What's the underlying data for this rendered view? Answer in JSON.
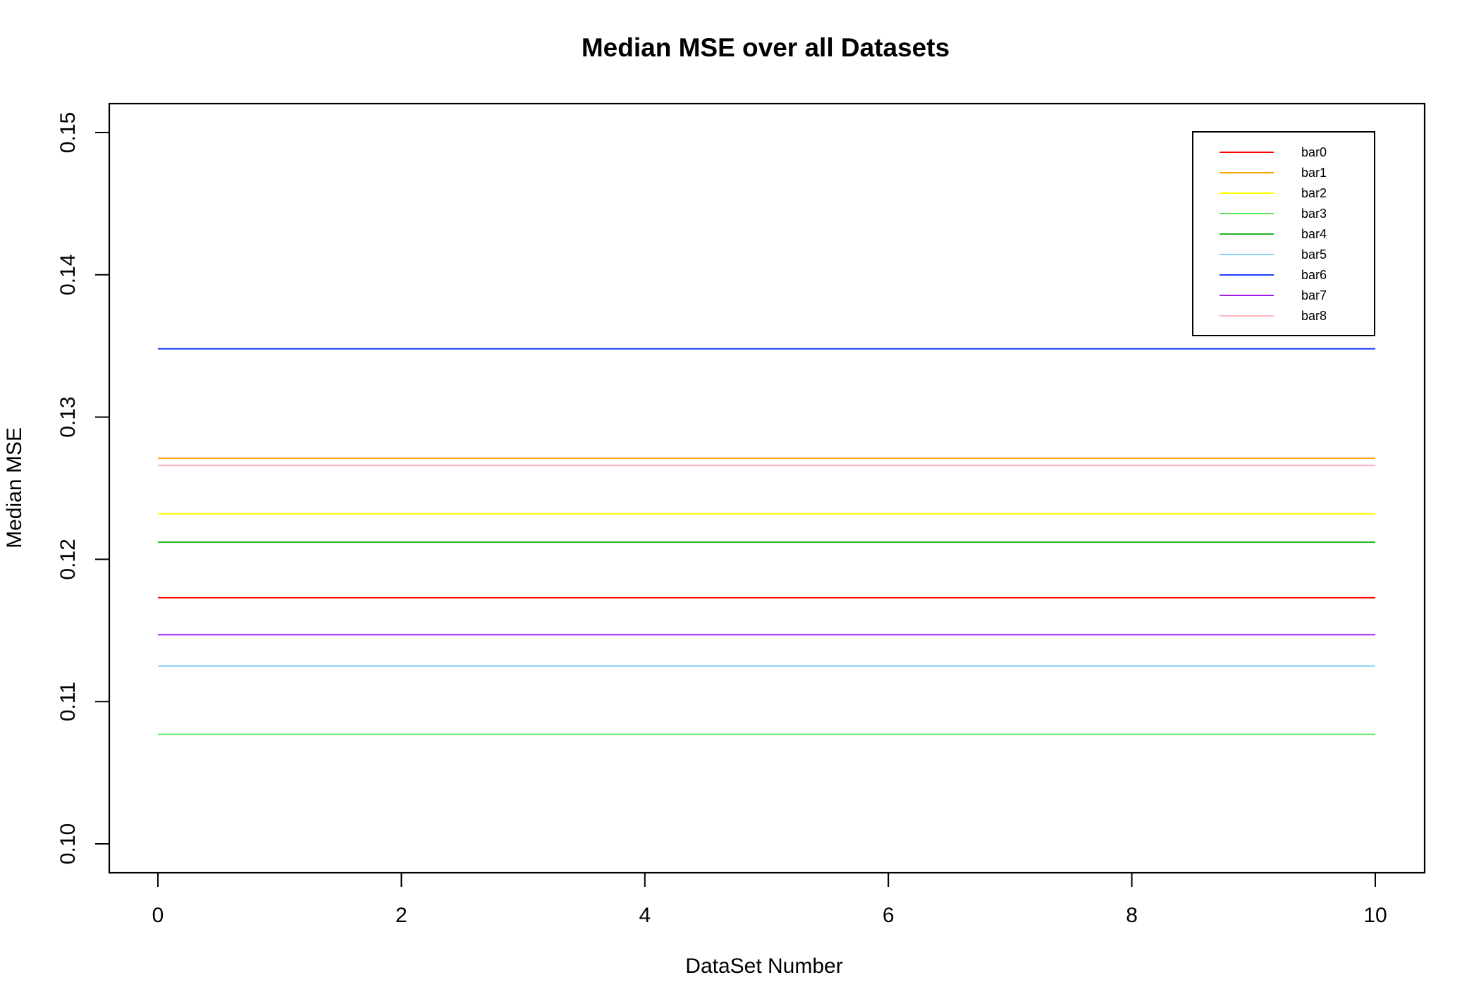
{
  "chart_data": {
    "type": "line",
    "title": "Median MSE over all Datasets",
    "xlabel": "DataSet Number",
    "ylabel": "Median MSE",
    "xlim": [
      0,
      10
    ],
    "ylim": [
      0.1,
      0.15
    ],
    "x_ticks": [
      "0",
      "2",
      "4",
      "6",
      "8",
      "10"
    ],
    "y_ticks": [
      "0.10",
      "0.11",
      "0.12",
      "0.13",
      "0.14",
      "0.15"
    ],
    "x": [
      0,
      10
    ],
    "grid": false,
    "legend_position": "top-right",
    "series": [
      {
        "name": "bar0",
        "color": "#ff0000",
        "values": [
          0.1173,
          0.1173
        ]
      },
      {
        "name": "bar1",
        "color": "#ffa500",
        "values": [
          0.1271,
          0.1271
        ]
      },
      {
        "name": "bar2",
        "color": "#ffff00",
        "values": [
          0.1232,
          0.1232
        ]
      },
      {
        "name": "bar3",
        "color": "#5ee85e",
        "values": [
          0.1077,
          0.1077
        ]
      },
      {
        "name": "bar4",
        "color": "#22b422",
        "values": [
          0.1212,
          0.1212
        ]
      },
      {
        "name": "bar5",
        "color": "#87cefa",
        "values": [
          0.1125,
          0.1125
        ]
      },
      {
        "name": "bar6",
        "color": "#1e3cff",
        "values": [
          0.1348,
          0.1348
        ]
      },
      {
        "name": "bar7",
        "color": "#a020f0",
        "values": [
          0.1147,
          0.1147
        ]
      },
      {
        "name": "bar8",
        "color": "#ffb6c1",
        "values": [
          0.1266,
          0.1266
        ]
      }
    ]
  }
}
